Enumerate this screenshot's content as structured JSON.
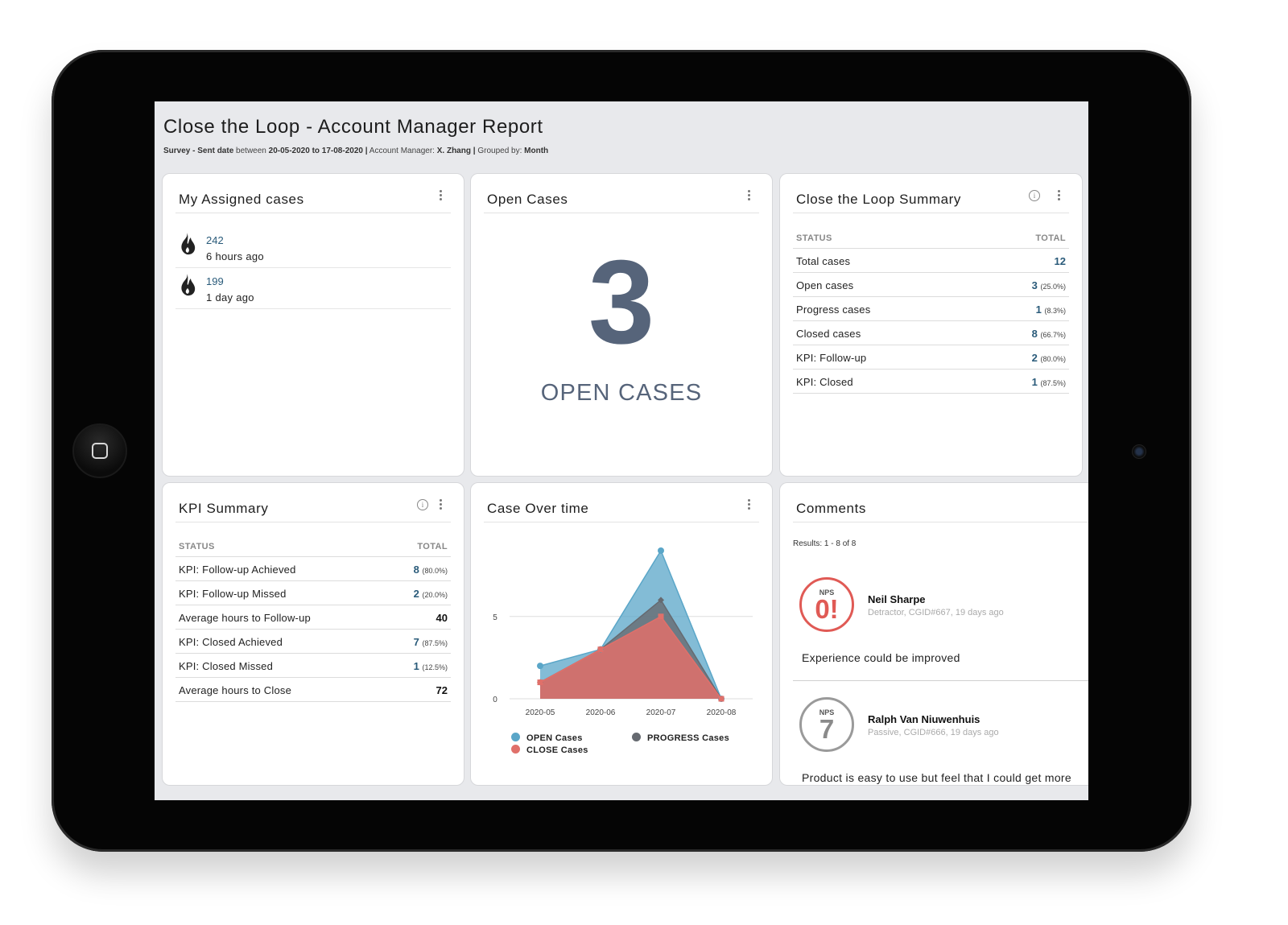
{
  "report": {
    "title": "Close the Loop - Account Manager Report",
    "subtitle": {
      "survey": "Survey - Sent date",
      "between": "between",
      "range": "20-05-2020 to 17-08-2020",
      "sep": "|",
      "manager_label": "Account Manager:",
      "manager": "X. Zhang",
      "grouped_label": "Grouped by:",
      "grouped": "Month"
    }
  },
  "assigned": {
    "title": "My Assigned cases",
    "items": [
      {
        "id": "242",
        "time": "6 hours ago",
        "icon": "flame-icon"
      },
      {
        "id": "199",
        "time": "1 day ago",
        "icon": "flame-icon"
      }
    ]
  },
  "open_cases": {
    "title": "Open Cases",
    "value": "3",
    "label": "OPEN CASES"
  },
  "summary": {
    "title": "Close the Loop Summary",
    "col_status": "STATUS",
    "col_total": "TOTAL",
    "rows": [
      {
        "label": "Total cases",
        "value": "12",
        "pct": ""
      },
      {
        "label": "Open cases",
        "value": "3",
        "pct": "(25.0%)"
      },
      {
        "label": "Progress cases",
        "value": "1",
        "pct": "(8.3%)"
      },
      {
        "label": "Closed cases",
        "value": "8",
        "pct": "(66.7%)"
      },
      {
        "label": "KPI: Follow-up",
        "value": "2",
        "pct": "(80.0%)"
      },
      {
        "label": "KPI: Closed",
        "value": "1",
        "pct": "(87.5%)"
      }
    ]
  },
  "kpi": {
    "title": "KPI Summary",
    "col_status": "STATUS",
    "col_total": "TOTAL",
    "rows": [
      {
        "label": "KPI: Follow-up Achieved",
        "value": "8",
        "pct": "(80.0%)"
      },
      {
        "label": "KPI: Follow-up Missed",
        "value": "2",
        "pct": "(20.0%)"
      },
      {
        "label": "Average hours to Follow-up",
        "value": "40",
        "pct": ""
      },
      {
        "label": "KPI: Closed Achieved",
        "value": "7",
        "pct": "(87.5%)"
      },
      {
        "label": "KPI: Closed Missed",
        "value": "1",
        "pct": "(12.5%)"
      },
      {
        "label": "Average hours to Close",
        "value": "72",
        "pct": ""
      }
    ]
  },
  "case_over_time": {
    "title": "Case Over time"
  },
  "chart_data": {
    "type": "area",
    "title": "Case Over time",
    "categories": [
      "2020-05",
      "2020-06",
      "2020-07",
      "2020-08"
    ],
    "y_ticks": [
      "0",
      "5"
    ],
    "ylim": [
      0,
      9
    ],
    "grid": true,
    "legend_position": "bottom",
    "series": [
      {
        "name": "OPEN Cases",
        "values": [
          2,
          3,
          9,
          0
        ],
        "color": "#5aa6c8"
      },
      {
        "name": "PROGRESS Cases",
        "values": [
          1,
          3,
          6,
          0
        ],
        "color": "#666a70"
      },
      {
        "name": "CLOSE Cases",
        "values": [
          1,
          3,
          5,
          0
        ],
        "color": "#e0706a"
      }
    ]
  },
  "comments": {
    "title": "Comments",
    "results": "Results: 1 - 8 of 8",
    "items": [
      {
        "nps_label": "NPS",
        "nps": "0!",
        "name": "Neil Sharpe",
        "meta": "Detractor, CGID#667, 19 days ago",
        "text": "Experience could be improved",
        "color": "#e05a55"
      },
      {
        "nps_label": "NPS",
        "nps": "7",
        "name": "Ralph Van Niuwenhuis",
        "meta": "Passive, CGID#666, 19 days ago",
        "text": "Product is easy to use but feel that I could get more",
        "color": "#9a9a9a"
      }
    ]
  }
}
